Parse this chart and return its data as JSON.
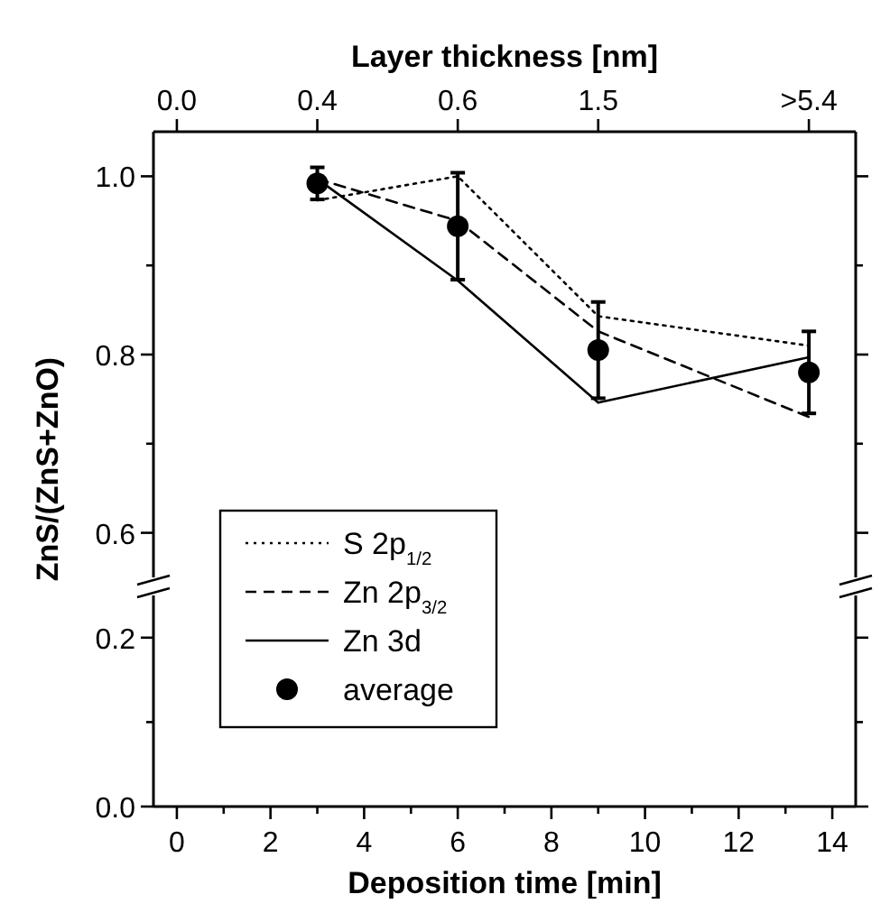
{
  "chart_data": [
    {
      "type": "line",
      "x2label": "Layer thickness [nm]",
      "ylabel": "ZnS/(ZnS+ZnO)",
      "xlim": [
        -0.5,
        14.5
      ],
      "annotations": [
        "0.0",
        {
          "text": "0.4",
          "x": 3
        },
        {
          "text": "0.6",
          "x": 6
        },
        {
          "text": "1.5",
          "x": 9
        },
        {
          "text": ">5.4",
          "x": 13.5
        }
      ],
      "ylim": [
        0.55,
        1.05
      ],
      "yticks": [
        {
          "value": 0.6,
          "label": "0.6"
        },
        {
          "value": 0.7,
          "label": null
        },
        {
          "value": 0.8,
          "label": "0.8"
        },
        {
          "value": 0.9,
          "label": null
        },
        {
          "value": 1.0,
          "label": "1.0"
        }
      ],
      "legend": "bottom left",
      "series": [
        {
          "name": "S 2p$_{1/2}$",
          "type": "line",
          "line_style": "dotted",
          "color": "#000000",
          "x": [
            3,
            6,
            9,
            13.5
          ],
          "values": [
            0.973,
            1.0,
            0.843,
            0.81
          ]
        },
        {
          "name": "Zn 2p$_{3/2}$",
          "type": "line",
          "line_style": "dashed",
          "color": "#000000",
          "x": [
            3,
            6,
            9,
            13.5
          ],
          "values": [
            0.997,
            0.95,
            0.826,
            0.73
          ]
        },
        {
          "name": "Zn 3d",
          "type": "line",
          "line_style": "solid",
          "color": "#000000",
          "x": [
            3,
            6,
            9,
            13.5
          ],
          "values": [
            0.997,
            0.883,
            0.746,
            0.797
          ]
        },
        {
          "name": "average",
          "type": "scatter",
          "marker": "circle",
          "color": "#000000",
          "x": [
            3,
            6,
            9,
            13.5
          ],
          "values": [
            0.992,
            0.944,
            0.805,
            0.78
          ],
          "errors": [
            0.018,
            0.06,
            0.054,
            0.046
          ]
        }
      ]
    },
    {
      "type": "line",
      "xlabel": "Deposition time [min]",
      "xlim": [
        -0.5,
        14.5
      ],
      "xticks": [
        0,
        {
          "value": 1,
          "label": null
        },
        2,
        {
          "value": 3,
          "label": null
        },
        4,
        {
          "value": 5,
          "label": null
        },
        6,
        {
          "value": 7,
          "label": null
        },
        8,
        {
          "value": 9,
          "label": null
        },
        10,
        {
          "value": 11,
          "label": null
        },
        12,
        {
          "value": 13,
          "label": null
        },
        14
      ],
      "ylim": [
        0,
        0.25
      ],
      "yticks": [
        {
          "value": 0,
          "label": "0.0"
        },
        {
          "value": 0.1,
          "label": null
        },
        {
          "value": 0.2,
          "label": "0.2"
        }
      ]
    }
  ]
}
